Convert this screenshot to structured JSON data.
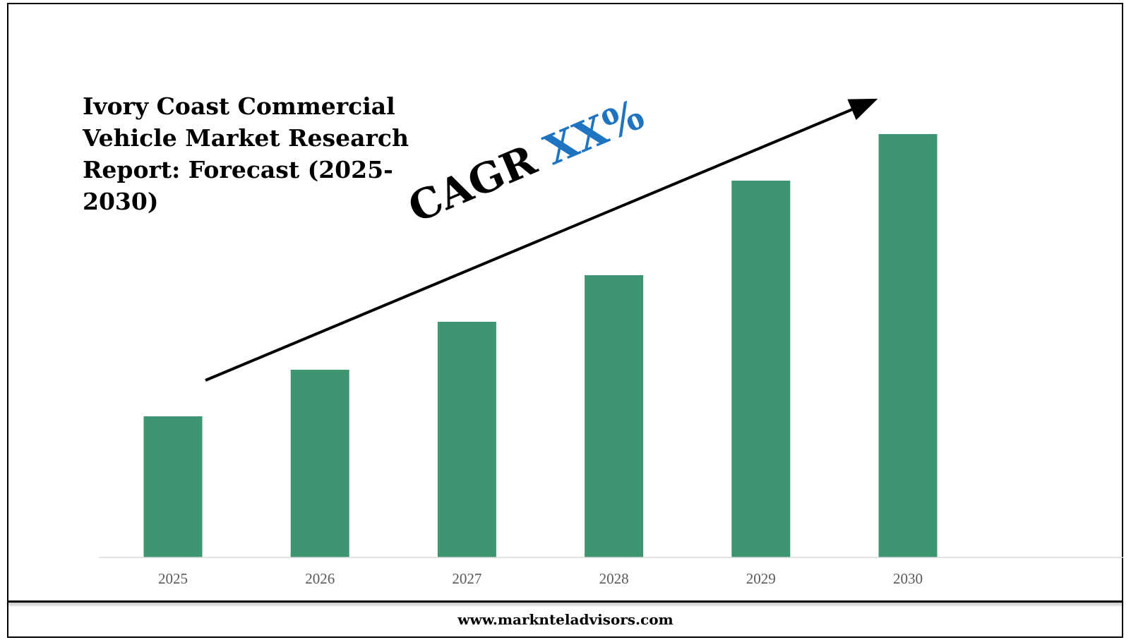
{
  "chart_data": {
    "type": "bar",
    "title": "Ivory Coast Commercial\nVehicle Market Research\nReport: Forecast (2025-2030)",
    "categories": [
      "2025",
      "2026",
      "2027",
      "2028",
      "2029",
      "2030"
    ],
    "series": [
      {
        "values": [
          1.0,
          1.33,
          1.67,
          2.0,
          2.67,
          3.0
        ]
      }
    ],
    "ylim": [
      0,
      3.0
    ],
    "y_axis_labels_shown": false,
    "grid": false,
    "legend": "none",
    "annotation": {
      "prefix": "CAGR ",
      "value": "XX%",
      "arrow": "upward trend arrow from 2025 to 2030"
    },
    "colors": {
      "bar": "#3d9671",
      "annotation_value": "#1f74c2",
      "axis_line": "#d9d9d9",
      "tick_text": "#595959"
    }
  },
  "footer": {
    "url": "www.marknteladvisors.com"
  }
}
